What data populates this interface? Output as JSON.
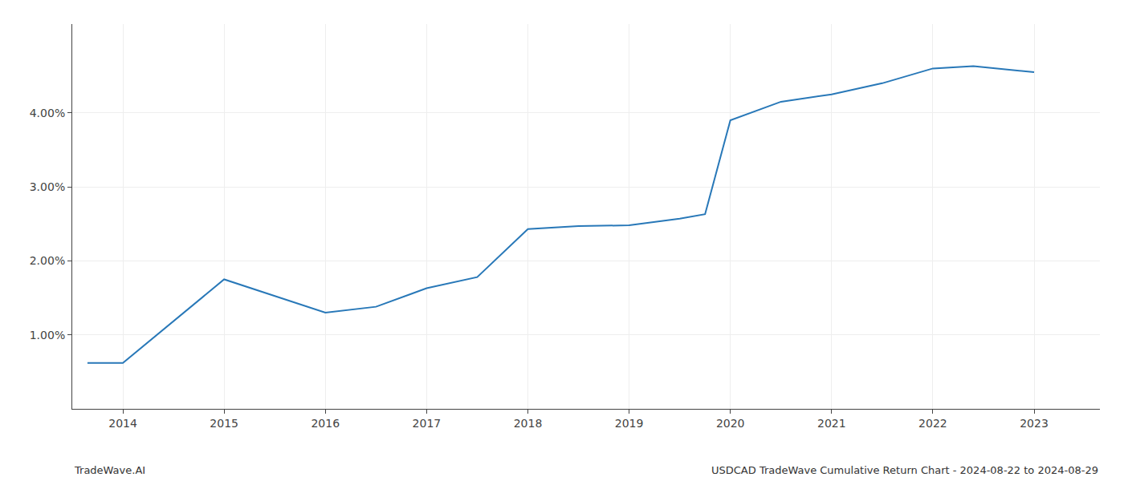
{
  "chart_data": {
    "type": "line",
    "x": [
      2013.65,
      2014,
      2015,
      2016,
      2016.5,
      2017,
      2017.5,
      2018,
      2018.5,
      2019,
      2019.5,
      2019.75,
      2020,
      2020.5,
      2021,
      2021.5,
      2022,
      2022.4,
      2023
    ],
    "values": [
      0.0062,
      0.0062,
      0.0175,
      0.013,
      0.0138,
      0.0163,
      0.0178,
      0.0243,
      0.0247,
      0.0248,
      0.0257,
      0.0263,
      0.039,
      0.0415,
      0.0425,
      0.044,
      0.046,
      0.0463,
      0.0455
    ],
    "color": "#2878b8",
    "xlim": [
      2013.5,
      2023.65
    ],
    "xticks": [
      2014,
      2015,
      2016,
      2017,
      2018,
      2019,
      2020,
      2021,
      2022,
      2023
    ],
    "ylim": [
      0.0,
      0.052
    ],
    "yticks": [
      {
        "value": 0.01,
        "label": "1.00%"
      },
      {
        "value": 0.02,
        "label": "2.00%"
      },
      {
        "value": 0.03,
        "label": "3.00%"
      },
      {
        "value": 0.04,
        "label": "4.00%"
      }
    ],
    "grid": true,
    "annotations": [
      "TradeWave.AI",
      "USDCAD TradeWave Cumulative Return Chart - 2024-08-22 to 2024-08-29"
    ]
  }
}
